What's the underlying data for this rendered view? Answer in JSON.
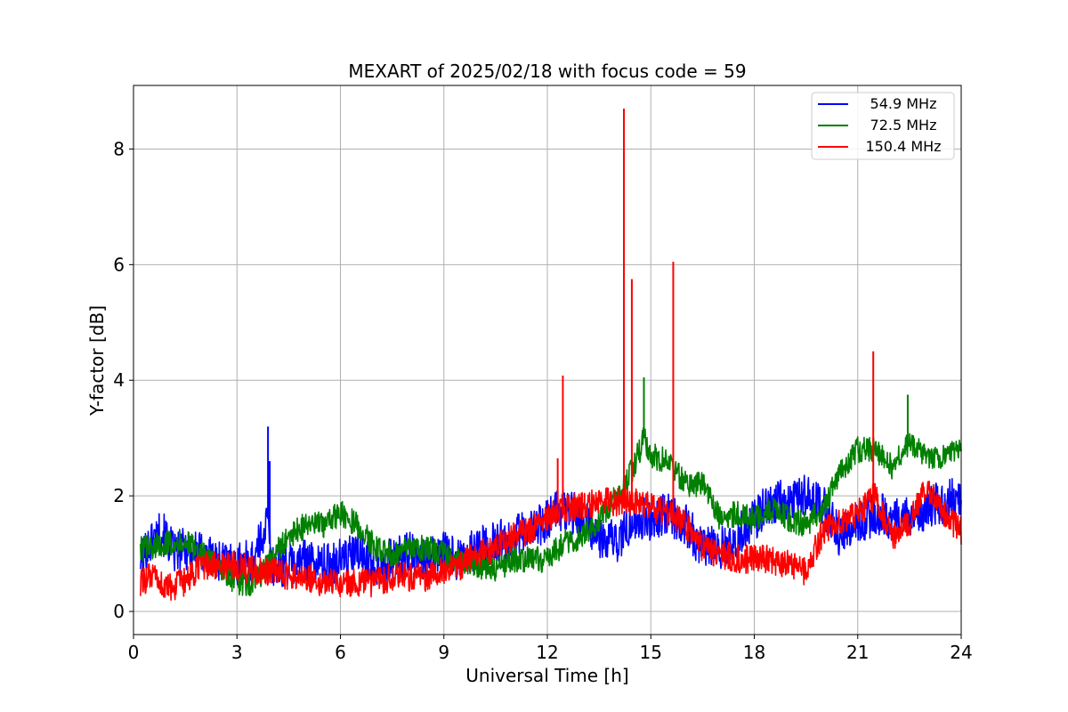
{
  "chart_data": {
    "type": "line",
    "title": "MEXART of 2025/02/18 with focus code = 59",
    "xlabel": "Universal Time [h]",
    "ylabel": "Y-factor [dB]",
    "xlim": [
      0,
      24
    ],
    "ylim": [
      -0.4,
      9.1
    ],
    "xticks": [
      0,
      3,
      6,
      9,
      12,
      15,
      18,
      21,
      24
    ],
    "yticks": [
      0,
      2,
      4,
      6,
      8
    ],
    "grid": true,
    "legend_position": "top-right",
    "series": [
      {
        "name": "54.9 MHz",
        "color": "#0000ff",
        "points": [
          [
            0.2,
            0.9
          ],
          [
            0.5,
            1.2
          ],
          [
            0.8,
            1.4
          ],
          [
            1.2,
            1.0
          ],
          [
            1.5,
            1.1
          ],
          [
            2.0,
            1.0
          ],
          [
            2.5,
            0.9
          ],
          [
            3.0,
            0.8
          ],
          [
            3.5,
            0.9
          ],
          [
            3.9,
            1.6
          ],
          [
            4.0,
            0.8
          ],
          [
            4.5,
            0.8
          ],
          [
            5.0,
            0.9
          ],
          [
            5.5,
            0.8
          ],
          [
            6.0,
            0.9
          ],
          [
            6.5,
            1.0
          ],
          [
            7.0,
            0.8
          ],
          [
            7.5,
            0.9
          ],
          [
            8.0,
            1.0
          ],
          [
            8.5,
            0.9
          ],
          [
            9.0,
            1.0
          ],
          [
            9.5,
            0.9
          ],
          [
            10.0,
            1.1
          ],
          [
            10.5,
            1.2
          ],
          [
            11.0,
            1.3
          ],
          [
            11.5,
            1.4
          ],
          [
            12.0,
            1.6
          ],
          [
            12.5,
            1.8
          ],
          [
            13.0,
            1.6
          ],
          [
            13.5,
            1.3
          ],
          [
            14.0,
            1.2
          ],
          [
            14.5,
            1.6
          ],
          [
            15.0,
            1.6
          ],
          [
            15.5,
            1.7
          ],
          [
            16.0,
            1.5
          ],
          [
            16.5,
            1.1
          ],
          [
            17.0,
            1.1
          ],
          [
            17.5,
            1.3
          ],
          [
            18.0,
            1.6
          ],
          [
            18.5,
            1.9
          ],
          [
            19.0,
            1.9
          ],
          [
            19.5,
            2.0
          ],
          [
            20.0,
            1.8
          ],
          [
            20.5,
            1.3
          ],
          [
            21.0,
            1.5
          ],
          [
            21.5,
            1.7
          ],
          [
            22.0,
            1.6
          ],
          [
            22.5,
            1.6
          ],
          [
            23.0,
            1.8
          ],
          [
            23.5,
            1.9
          ],
          [
            24.0,
            2.0
          ]
        ],
        "spikes": [
          [
            3.9,
            3.2
          ],
          [
            3.95,
            2.6
          ]
        ]
      },
      {
        "name": "72.5 MHz",
        "color": "#008000",
        "points": [
          [
            0.2,
            1.1
          ],
          [
            0.5,
            1.1
          ],
          [
            1.0,
            1.2
          ],
          [
            1.5,
            1.2
          ],
          [
            2.0,
            1.0
          ],
          [
            2.5,
            0.7
          ],
          [
            3.0,
            0.5
          ],
          [
            3.5,
            0.5
          ],
          [
            4.0,
            0.9
          ],
          [
            4.5,
            1.3
          ],
          [
            5.0,
            1.5
          ],
          [
            5.5,
            1.5
          ],
          [
            6.0,
            1.7
          ],
          [
            6.5,
            1.5
          ],
          [
            7.0,
            1.1
          ],
          [
            7.5,
            1.0
          ],
          [
            8.0,
            1.1
          ],
          [
            8.5,
            1.1
          ],
          [
            9.0,
            1.0
          ],
          [
            9.5,
            0.9
          ],
          [
            10.0,
            0.8
          ],
          [
            10.5,
            0.7
          ],
          [
            11.0,
            0.9
          ],
          [
            11.5,
            0.9
          ],
          [
            12.0,
            0.9
          ],
          [
            12.5,
            1.2
          ],
          [
            13.0,
            1.3
          ],
          [
            13.5,
            1.6
          ],
          [
            14.0,
            2.0
          ],
          [
            14.5,
            2.5
          ],
          [
            14.8,
            3.0
          ],
          [
            15.0,
            2.7
          ],
          [
            15.5,
            2.6
          ],
          [
            16.0,
            2.2
          ],
          [
            16.5,
            2.2
          ],
          [
            17.0,
            1.6
          ],
          [
            17.5,
            1.7
          ],
          [
            18.0,
            1.6
          ],
          [
            18.5,
            1.8
          ],
          [
            19.0,
            1.6
          ],
          [
            19.5,
            1.5
          ],
          [
            20.0,
            1.8
          ],
          [
            20.5,
            2.4
          ],
          [
            21.0,
            2.8
          ],
          [
            21.5,
            2.8
          ],
          [
            22.0,
            2.5
          ],
          [
            22.5,
            2.9
          ],
          [
            23.0,
            2.7
          ],
          [
            23.5,
            2.7
          ],
          [
            24.0,
            2.9
          ]
        ],
        "spikes": [
          [
            14.8,
            4.05
          ],
          [
            22.45,
            3.75
          ]
        ]
      },
      {
        "name": "150.4 MHz",
        "color": "#ff0000",
        "points": [
          [
            0.2,
            0.5
          ],
          [
            0.5,
            0.6
          ],
          [
            1.0,
            0.4
          ],
          [
            1.5,
            0.5
          ],
          [
            2.0,
            0.8
          ],
          [
            2.5,
            0.8
          ],
          [
            3.0,
            0.8
          ],
          [
            3.5,
            0.7
          ],
          [
            4.0,
            0.7
          ],
          [
            4.5,
            0.6
          ],
          [
            5.0,
            0.6
          ],
          [
            5.5,
            0.5
          ],
          [
            6.0,
            0.5
          ],
          [
            6.5,
            0.5
          ],
          [
            7.0,
            0.5
          ],
          [
            7.5,
            0.6
          ],
          [
            8.0,
            0.6
          ],
          [
            8.5,
            0.6
          ],
          [
            9.0,
            0.7
          ],
          [
            9.5,
            0.8
          ],
          [
            10.0,
            1.0
          ],
          [
            10.5,
            1.1
          ],
          [
            11.0,
            1.3
          ],
          [
            11.5,
            1.4
          ],
          [
            12.0,
            1.6
          ],
          [
            12.5,
            1.8
          ],
          [
            13.0,
            1.8
          ],
          [
            13.5,
            1.9
          ],
          [
            14.0,
            1.9
          ],
          [
            14.5,
            1.9
          ],
          [
            15.0,
            1.8
          ],
          [
            15.5,
            1.7
          ],
          [
            16.0,
            1.5
          ],
          [
            16.5,
            1.1
          ],
          [
            17.0,
            1.0
          ],
          [
            17.5,
            0.9
          ],
          [
            18.0,
            0.9
          ],
          [
            18.5,
            0.9
          ],
          [
            19.0,
            0.8
          ],
          [
            19.5,
            0.7
          ],
          [
            20.0,
            1.4
          ],
          [
            20.5,
            1.6
          ],
          [
            21.0,
            1.7
          ],
          [
            21.5,
            2.0
          ],
          [
            22.0,
            1.3
          ],
          [
            22.5,
            1.5
          ],
          [
            23.0,
            2.2
          ],
          [
            23.5,
            1.7
          ],
          [
            24.0,
            1.4
          ]
        ],
        "spikes": [
          [
            12.45,
            4.08
          ],
          [
            14.22,
            8.7
          ],
          [
            14.45,
            5.75
          ],
          [
            15.65,
            6.05
          ],
          [
            21.45,
            4.5
          ],
          [
            12.3,
            2.65
          ]
        ]
      }
    ]
  }
}
